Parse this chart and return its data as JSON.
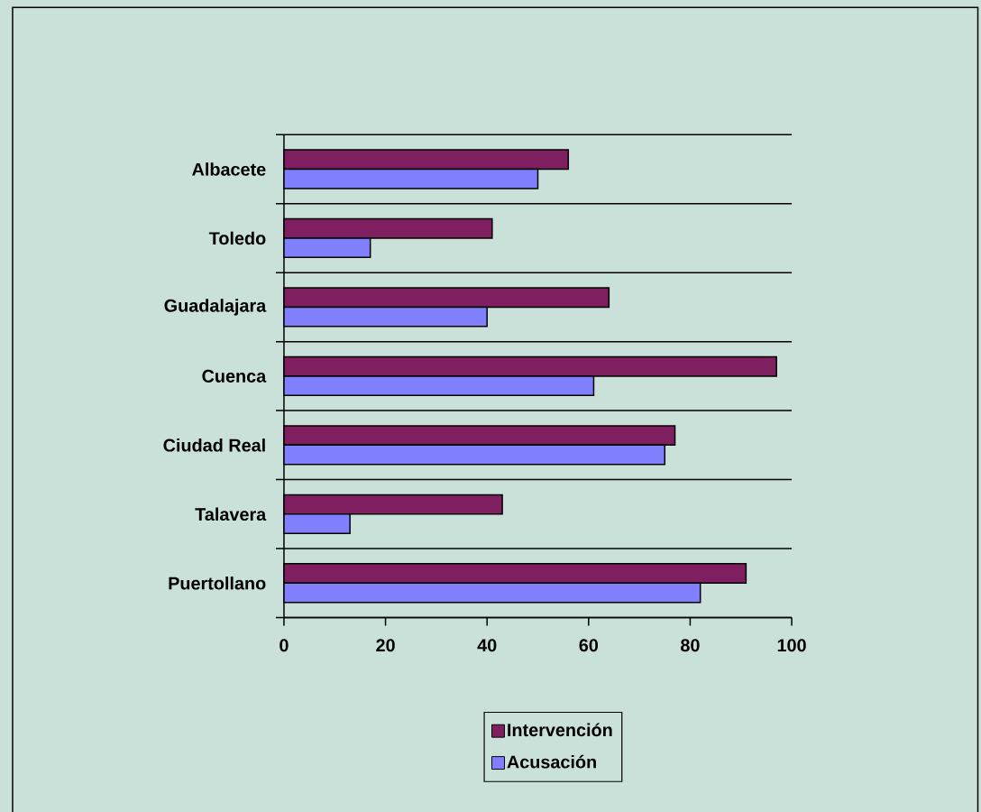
{
  "chart_data": {
    "type": "bar",
    "orientation": "horizontal",
    "categories": [
      "Albacete",
      "Toledo",
      "Guadalajara",
      "Cuenca",
      "Ciudad Real",
      "Talavera",
      "Puertollano"
    ],
    "series": [
      {
        "name": "Intervención",
        "color": "#7f1f5f",
        "values": [
          56,
          41,
          64,
          97,
          77,
          43,
          91
        ]
      },
      {
        "name": "Acusación",
        "color": "#8080ff",
        "values": [
          50,
          17,
          40,
          61,
          75,
          13,
          82
        ]
      }
    ],
    "xlim": [
      0,
      100
    ],
    "xticks": [
      0,
      20,
      40,
      60,
      80,
      100
    ],
    "grid": "y",
    "legend": "bottom"
  }
}
